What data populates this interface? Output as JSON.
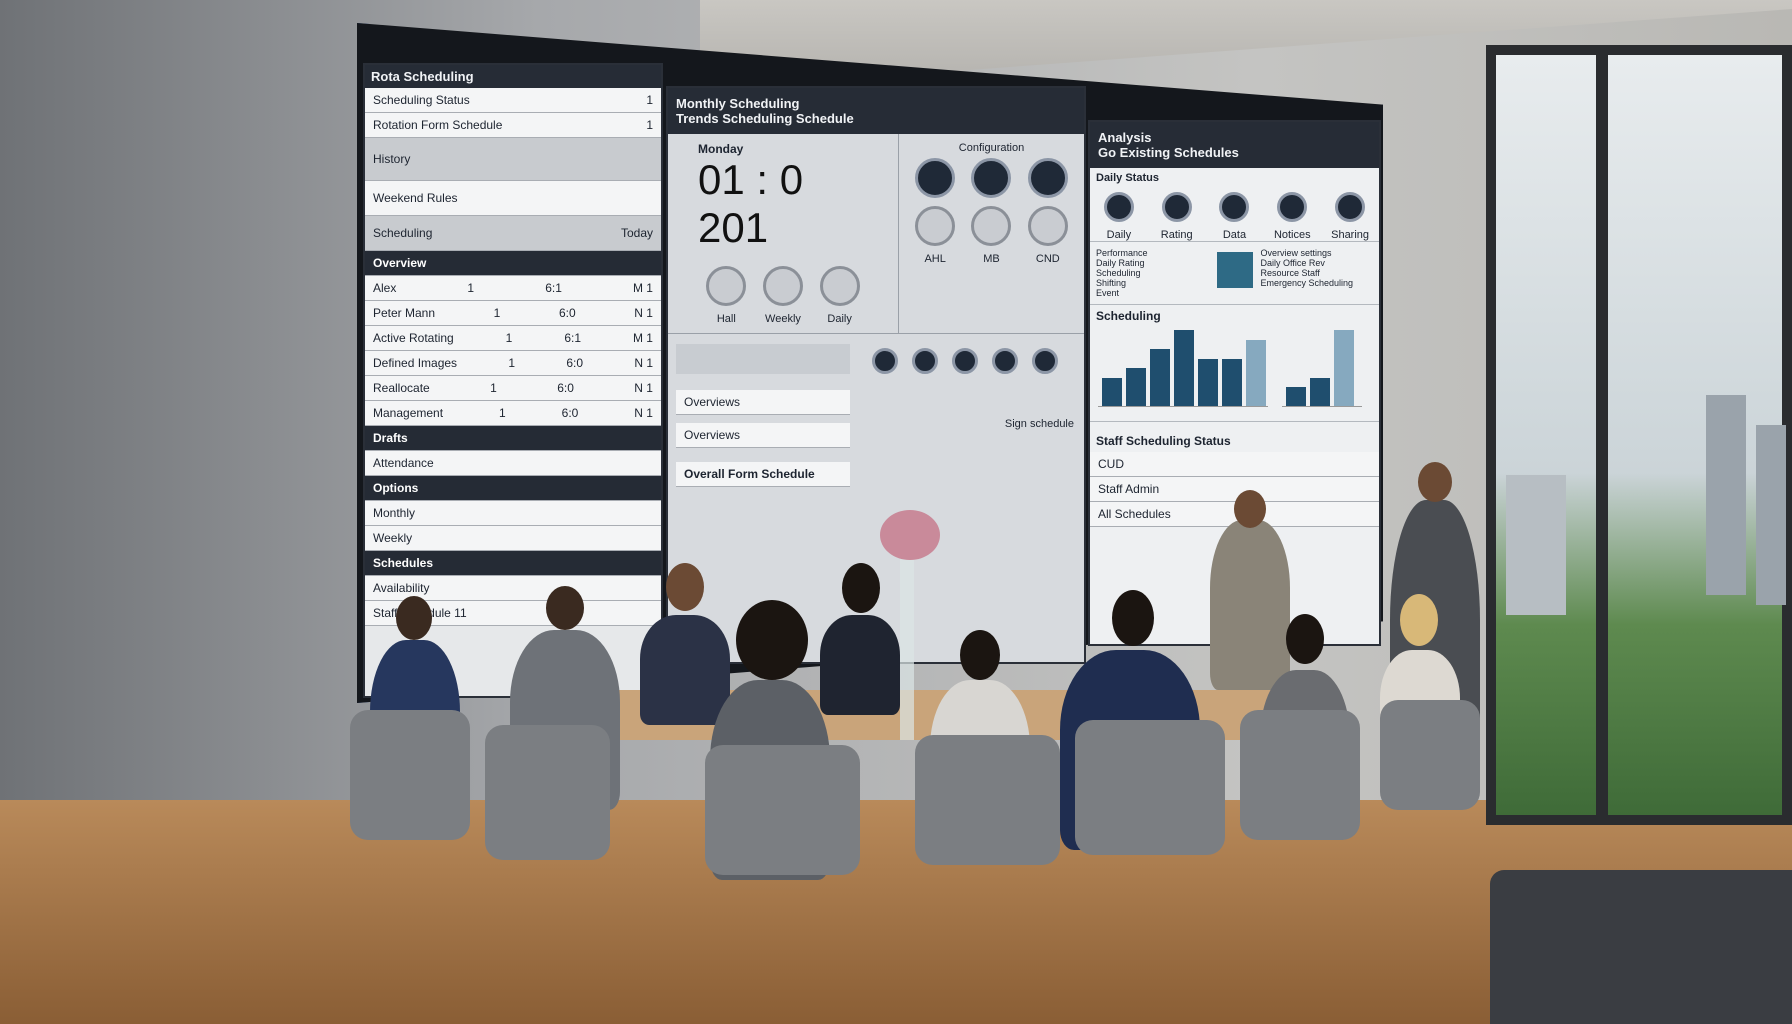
{
  "screen": {
    "left_panel": {
      "title": "Rota Scheduling",
      "items": [
        "Scheduling Status",
        "Rotation Form Schedule",
        "History",
        "Weekend Rules",
        "Scheduling"
      ],
      "item_values": [
        "1",
        "1",
        "",
        "",
        "Today"
      ],
      "section_title": "Overview",
      "rows": [
        {
          "name": "Alex",
          "a": "1",
          "b": "6:1",
          "c": "M 1"
        },
        {
          "name": "Peter Mann",
          "a": "1",
          "b": "6:0",
          "c": "N 1"
        },
        {
          "name": "Active Rotating",
          "a": "1",
          "b": "6:1",
          "c": "M 1"
        },
        {
          "name": "Defined Images",
          "a": "1",
          "b": "6:0",
          "c": "N 1"
        },
        {
          "name": "Reallocate",
          "a": "1",
          "b": "6:0",
          "c": "N 1"
        },
        {
          "name": "Management",
          "a": "1",
          "b": "6:0",
          "c": "N 1"
        }
      ],
      "section2": "Drafts",
      "row2": "Attendance",
      "section3": "Options",
      "row3": "Monthly",
      "row4": "Weekly",
      "section4": "Schedules",
      "row5": "Availability",
      "row6": "Staff Schedule 11"
    },
    "middle_panel": {
      "title": "Monthly Scheduling",
      "subtitle": "Trends Scheduling Schedule",
      "clock_label": "Monday",
      "clock": "01 : 0 201",
      "buttons": [
        "Hall",
        "Weekly",
        "Daily"
      ],
      "config_label": "Configuration",
      "config_buttons": [
        "AHL",
        "MB",
        "CND"
      ],
      "field1": "Overviews",
      "field2": "Overviews",
      "section": "Overall Form Schedule",
      "caption": "Sign schedule"
    },
    "right_panel": {
      "title": "Analysis",
      "subtitle": "Go Existing Schedules",
      "group_label": "Daily Status",
      "icons": [
        "Daily",
        "Rating",
        "Data"
      ],
      "icons2": [
        "Notices",
        "Sharing"
      ],
      "stats": [
        "Performance",
        "Daily Rating",
        "Scheduling",
        "Shifting",
        "Event"
      ],
      "notes": [
        "Overview settings",
        "Daily Office Rev",
        "Resource Staff",
        "Emergency Scheduling"
      ],
      "chart_title": "Scheduling",
      "chart_values": [
        3,
        4,
        6,
        8,
        5,
        5,
        7
      ],
      "chart2_values": [
        2,
        3,
        8
      ],
      "bottom_title": "Staff Scheduling Status",
      "bottom_rows": [
        "CUD",
        "Staff Admin",
        "All Schedules"
      ]
    }
  }
}
